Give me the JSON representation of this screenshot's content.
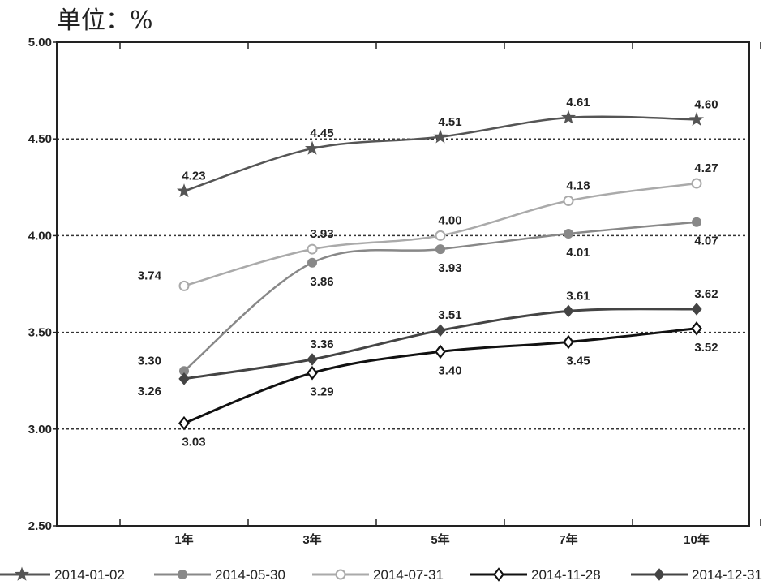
{
  "unit_label": "单位：%",
  "chart_data": {
    "type": "line",
    "title": "",
    "xlabel": "",
    "ylabel": "",
    "categories": [
      "1年",
      "3年",
      "5年",
      "7年",
      "10年"
    ],
    "ylim": [
      2.5,
      5.0
    ],
    "yticks": [
      "2.50",
      "3.00",
      "3.50",
      "4.00",
      "4.50",
      "5.00"
    ],
    "grid": "horizontal-dotted",
    "legend_placement": "bottom",
    "series": [
      {
        "name": "2014-01-02",
        "values": [
          4.23,
          4.45,
          4.51,
          4.61,
          4.6
        ],
        "labels": [
          "4.23",
          "4.45",
          "4.51",
          "4.61",
          "4.60"
        ],
        "color": "#555555",
        "marker": "star",
        "label_pos": [
          "above",
          "above",
          "above",
          "above",
          "above"
        ]
      },
      {
        "name": "2014-05-30",
        "values": [
          3.3,
          3.86,
          3.93,
          4.01,
          4.07
        ],
        "labels": [
          "3.30",
          "3.86",
          "3.93",
          "4.01",
          "4.07"
        ],
        "color": "#888888",
        "marker": "circle-filled",
        "label_pos": [
          "left",
          "below",
          "below",
          "below",
          "below"
        ]
      },
      {
        "name": "2014-07-31",
        "values": [
          3.74,
          3.93,
          4.0,
          4.18,
          4.27
        ],
        "labels": [
          "3.74",
          "3.93",
          "4.00",
          "4.18",
          "4.27"
        ],
        "color": "#aaaaaa",
        "marker": "circle-open",
        "label_pos": [
          "left",
          "above",
          "above",
          "above",
          "above"
        ]
      },
      {
        "name": "2014-11-28",
        "values": [
          3.03,
          3.29,
          3.4,
          3.45,
          3.52
        ],
        "labels": [
          "3.03",
          "3.29",
          "3.40",
          "3.45",
          "3.52"
        ],
        "color": "#111111",
        "marker": "diamond-open",
        "label_pos": [
          "below",
          "below",
          "below",
          "below",
          "below"
        ]
      },
      {
        "name": "2014-12-31",
        "values": [
          3.26,
          3.36,
          3.51,
          3.61,
          3.62
        ],
        "labels": [
          "3.26",
          "3.36",
          "3.51",
          "3.61",
          "3.62"
        ],
        "color": "#444444",
        "marker": "diamond-filled",
        "label_pos": [
          "left-below",
          "above",
          "above",
          "above",
          "above"
        ]
      }
    ]
  }
}
